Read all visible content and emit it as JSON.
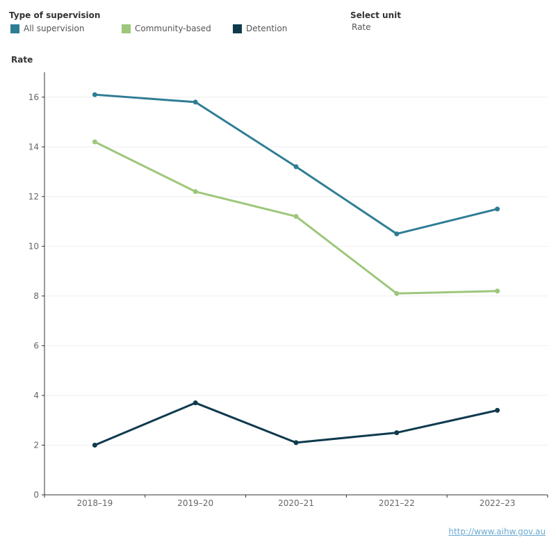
{
  "legend": {
    "title": "Type of supervision",
    "items": [
      {
        "label": "All supervision",
        "color": "#2e7d94"
      },
      {
        "label": "Community-based",
        "color": "#9dc77b"
      },
      {
        "label": "Detention",
        "color": "#0f3a4e"
      }
    ]
  },
  "unit_selector": {
    "title": "Select unit",
    "value": "Rate"
  },
  "source_link": "http://www.aihw.gov.au",
  "chart_data": {
    "type": "line",
    "title": "",
    "xlabel": "",
    "ylabel": "Rate",
    "categories": [
      "2018–19",
      "2019–20",
      "2020–21",
      "2021–22",
      "2022–23"
    ],
    "ylim": [
      0,
      17
    ],
    "yticks": [
      0,
      2,
      4,
      6,
      8,
      10,
      12,
      14,
      16
    ],
    "grid": true,
    "legend_position": "top-left",
    "series": [
      {
        "name": "All supervision",
        "color": "#2e7d94",
        "values": [
          16.1,
          15.8,
          13.2,
          10.5,
          11.5
        ]
      },
      {
        "name": "Community-based",
        "color": "#9dc77b",
        "values": [
          14.2,
          12.2,
          11.2,
          8.1,
          8.2
        ]
      },
      {
        "name": "Detention",
        "color": "#0f3a4e",
        "values": [
          2.0,
          3.7,
          2.1,
          2.5,
          3.4
        ]
      }
    ]
  }
}
